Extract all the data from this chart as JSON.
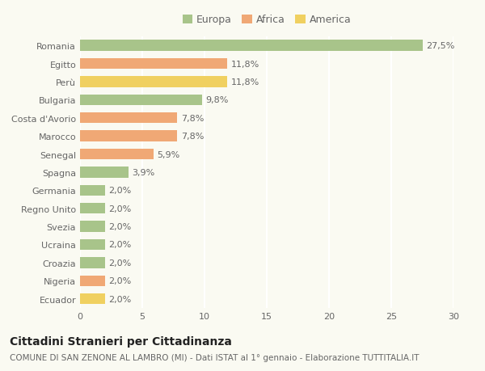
{
  "countries": [
    "Romania",
    "Egitto",
    "Perù",
    "Bulgaria",
    "Costa d'Avorio",
    "Marocco",
    "Senegal",
    "Spagna",
    "Germania",
    "Regno Unito",
    "Svezia",
    "Ucraina",
    "Croazia",
    "Nigeria",
    "Ecuador"
  ],
  "values": [
    27.5,
    11.8,
    11.8,
    9.8,
    7.8,
    7.8,
    5.9,
    3.9,
    2.0,
    2.0,
    2.0,
    2.0,
    2.0,
    2.0,
    2.0
  ],
  "labels": [
    "27,5%",
    "11,8%",
    "11,8%",
    "9,8%",
    "7,8%",
    "7,8%",
    "5,9%",
    "3,9%",
    "2,0%",
    "2,0%",
    "2,0%",
    "2,0%",
    "2,0%",
    "2,0%",
    "2,0%"
  ],
  "colors": [
    "#a8c48a",
    "#f0a875",
    "#f0d060",
    "#a8c48a",
    "#f0a875",
    "#f0a875",
    "#f0a875",
    "#a8c48a",
    "#a8c48a",
    "#a8c48a",
    "#a8c48a",
    "#a8c48a",
    "#a8c48a",
    "#f0a875",
    "#f0d060"
  ],
  "legend": [
    {
      "label": "Europa",
      "color": "#a8c48a"
    },
    {
      "label": "Africa",
      "color": "#f0a875"
    },
    {
      "label": "America",
      "color": "#f0d060"
    }
  ],
  "title": "Cittadini Stranieri per Cittadinanza",
  "subtitle": "COMUNE DI SAN ZENONE AL LAMBRO (MI) - Dati ISTAT al 1° gennaio - Elaborazione TUTTITALIA.IT",
  "xlim": [
    0,
    30
  ],
  "xticks": [
    0,
    5,
    10,
    15,
    20,
    25,
    30
  ],
  "background_color": "#fafaf2",
  "grid_color": "#ffffff",
  "bar_height": 0.6,
  "title_fontsize": 10,
  "subtitle_fontsize": 7.5,
  "label_fontsize": 8,
  "tick_fontsize": 8,
  "legend_fontsize": 9
}
